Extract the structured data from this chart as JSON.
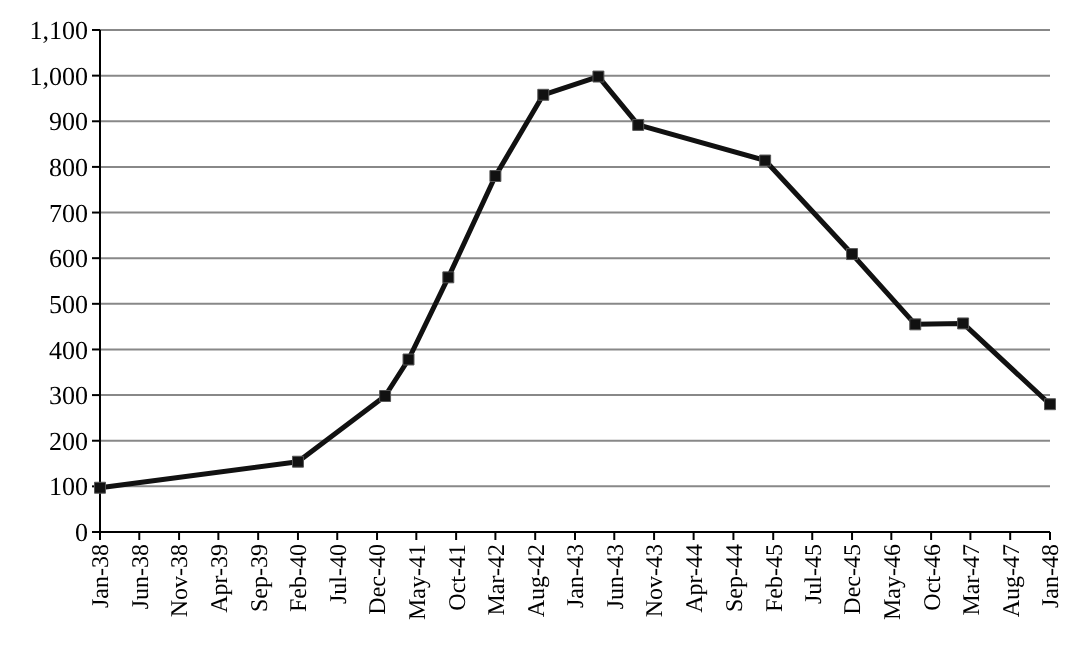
{
  "chart_data": {
    "type": "line",
    "x": [
      "1938-01",
      "1940-02",
      "1941-01",
      "1941-04",
      "1941-09",
      "1942-03",
      "1942-09",
      "1943-04",
      "1943-09",
      "1945-01",
      "1945-12",
      "1946-08",
      "1947-02",
      "1948-01"
    ],
    "values": [
      97,
      154,
      298,
      378,
      558,
      780,
      958,
      998,
      892,
      814,
      609,
      455,
      457,
      280
    ],
    "color": "#111111",
    "marker": "square",
    "line_style": "solid",
    "grid": "y",
    "xlim": [
      "1938-01",
      "1948-01"
    ],
    "xticks": [
      {
        "value": "1938-01",
        "label": "Jan-38"
      },
      {
        "value": "1938-06",
        "label": "Jun-38"
      },
      {
        "value": "1938-11",
        "label": "Nov-38"
      },
      {
        "value": "1939-04",
        "label": "Apr-39"
      },
      {
        "value": "1939-09",
        "label": "Sep-39"
      },
      {
        "value": "1940-02",
        "label": "Feb-40"
      },
      {
        "value": "1940-07",
        "label": "Jul-40"
      },
      {
        "value": "1940-12",
        "label": "Dec-40"
      },
      {
        "value": "1941-05",
        "label": "May-41"
      },
      {
        "value": "1941-10",
        "label": "Oct-41"
      },
      {
        "value": "1942-03",
        "label": "Mar-42"
      },
      {
        "value": "1942-08",
        "label": "Aug-42"
      },
      {
        "value": "1943-01",
        "label": "Jan-43"
      },
      {
        "value": "1943-06",
        "label": "Jun-43"
      },
      {
        "value": "1943-11",
        "label": "Nov-43"
      },
      {
        "value": "1944-04",
        "label": "Apr-44"
      },
      {
        "value": "1944-09",
        "label": "Sep-44"
      },
      {
        "value": "1945-02",
        "label": "Feb-45"
      },
      {
        "value": "1945-07",
        "label": "Jul-45"
      },
      {
        "value": "1945-12",
        "label": "Dec-45"
      },
      {
        "value": "1946-05",
        "label": "May-46"
      },
      {
        "value": "1946-10",
        "label": "Oct-46"
      },
      {
        "value": "1947-03",
        "label": "Mar-47"
      },
      {
        "value": "1947-08",
        "label": "Aug-47"
      },
      {
        "value": "1948-01",
        "label": "Jan-48"
      }
    ],
    "ylim": [
      0,
      1100
    ],
    "yticks": [
      {
        "value": 0,
        "label": "0"
      },
      {
        "value": 100,
        "label": "100"
      },
      {
        "value": 200,
        "label": "200"
      },
      {
        "value": 300,
        "label": "300"
      },
      {
        "value": 400,
        "label": "400"
      },
      {
        "value": 500,
        "label": "500"
      },
      {
        "value": 600,
        "label": "600"
      },
      {
        "value": 700,
        "label": "700"
      },
      {
        "value": 800,
        "label": "800"
      },
      {
        "value": 900,
        "label": "900"
      },
      {
        "value": 1000,
        "label": "1,000"
      },
      {
        "value": 1100,
        "label": "1,100"
      }
    ]
  }
}
